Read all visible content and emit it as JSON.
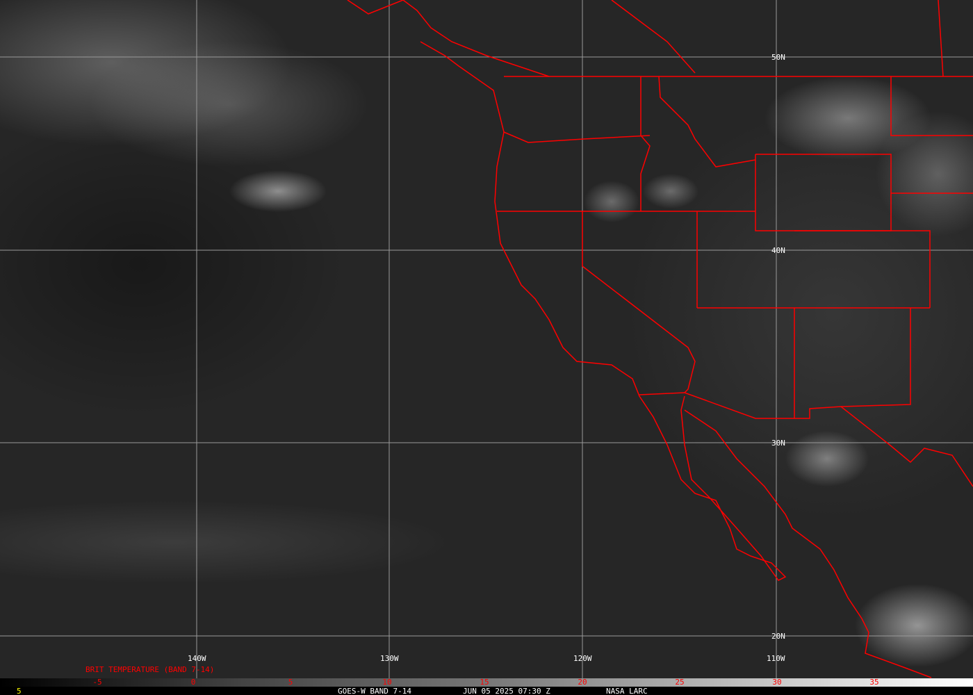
{
  "map": {
    "title": "GOES-W BAND 7-14",
    "date": "JUN 05 2025 07:30 Z",
    "source": "NASA LARC",
    "frame_number": "5",
    "colorbar_title": "BRIT TEMPERATURE (BAND 7-14)",
    "colorbar_ticks": [
      "-5",
      "0",
      "5",
      "10",
      "15",
      "20",
      "25",
      "30",
      "35"
    ],
    "lat_labels": [
      "50N",
      "40N",
      "30N",
      "20N"
    ],
    "lon_labels": [
      "140W",
      "130W",
      "120W",
      "110W"
    ],
    "colors": {
      "borders": "#ff0000",
      "grid": "#9a9a9a",
      "labels": "#ffffff",
      "frame_number": "#ffff00"
    }
  }
}
